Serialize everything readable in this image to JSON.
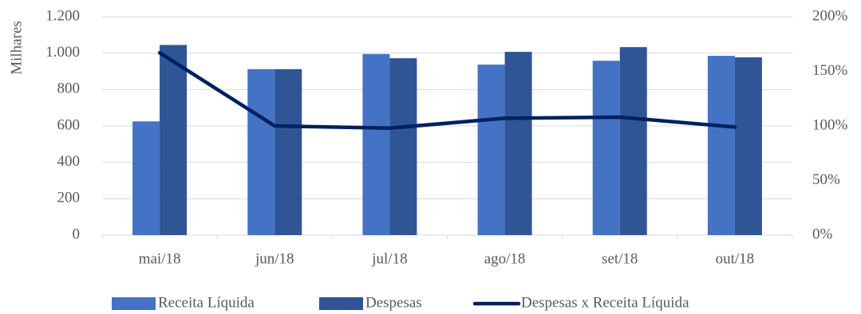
{
  "chart_data": {
    "type": "bar",
    "y_label": "Milhares",
    "categories": [
      "mai/18",
      "jun/18",
      "jul/18",
      "ago/18",
      "set/18",
      "out/18"
    ],
    "series": [
      {
        "name": "Receita Líquida",
        "type": "bar",
        "color": "#4472c4",
        "values": [
          625,
          912,
          995,
          937,
          958,
          985
        ]
      },
      {
        "name": "Despesas",
        "type": "bar",
        "color": "#2f5597",
        "values": [
          1045,
          912,
          972,
          1007,
          1033,
          977
        ]
      },
      {
        "name": "Despesas x Receita Líquida",
        "type": "line",
        "axis": "y2",
        "color": "#002060",
        "values": [
          167,
          100,
          98,
          107,
          108,
          99
        ]
      }
    ],
    "ylim": [
      0,
      1200
    ],
    "yticks": [
      0,
      200,
      400,
      600,
      800,
      {
        "value": 1000,
        "label": "1.000"
      },
      {
        "value": 1200,
        "label": "1.200"
      }
    ],
    "y2lim": [
      0,
      200
    ],
    "y2ticks": [
      {
        "value": 0,
        "label": "0%"
      },
      {
        "value": 50,
        "label": "50%"
      },
      {
        "value": 100,
        "label": "100%"
      },
      {
        "value": 150,
        "label": "150%"
      },
      {
        "value": 200,
        "label": "200%"
      }
    ],
    "grid": true,
    "legend": "bottom"
  }
}
